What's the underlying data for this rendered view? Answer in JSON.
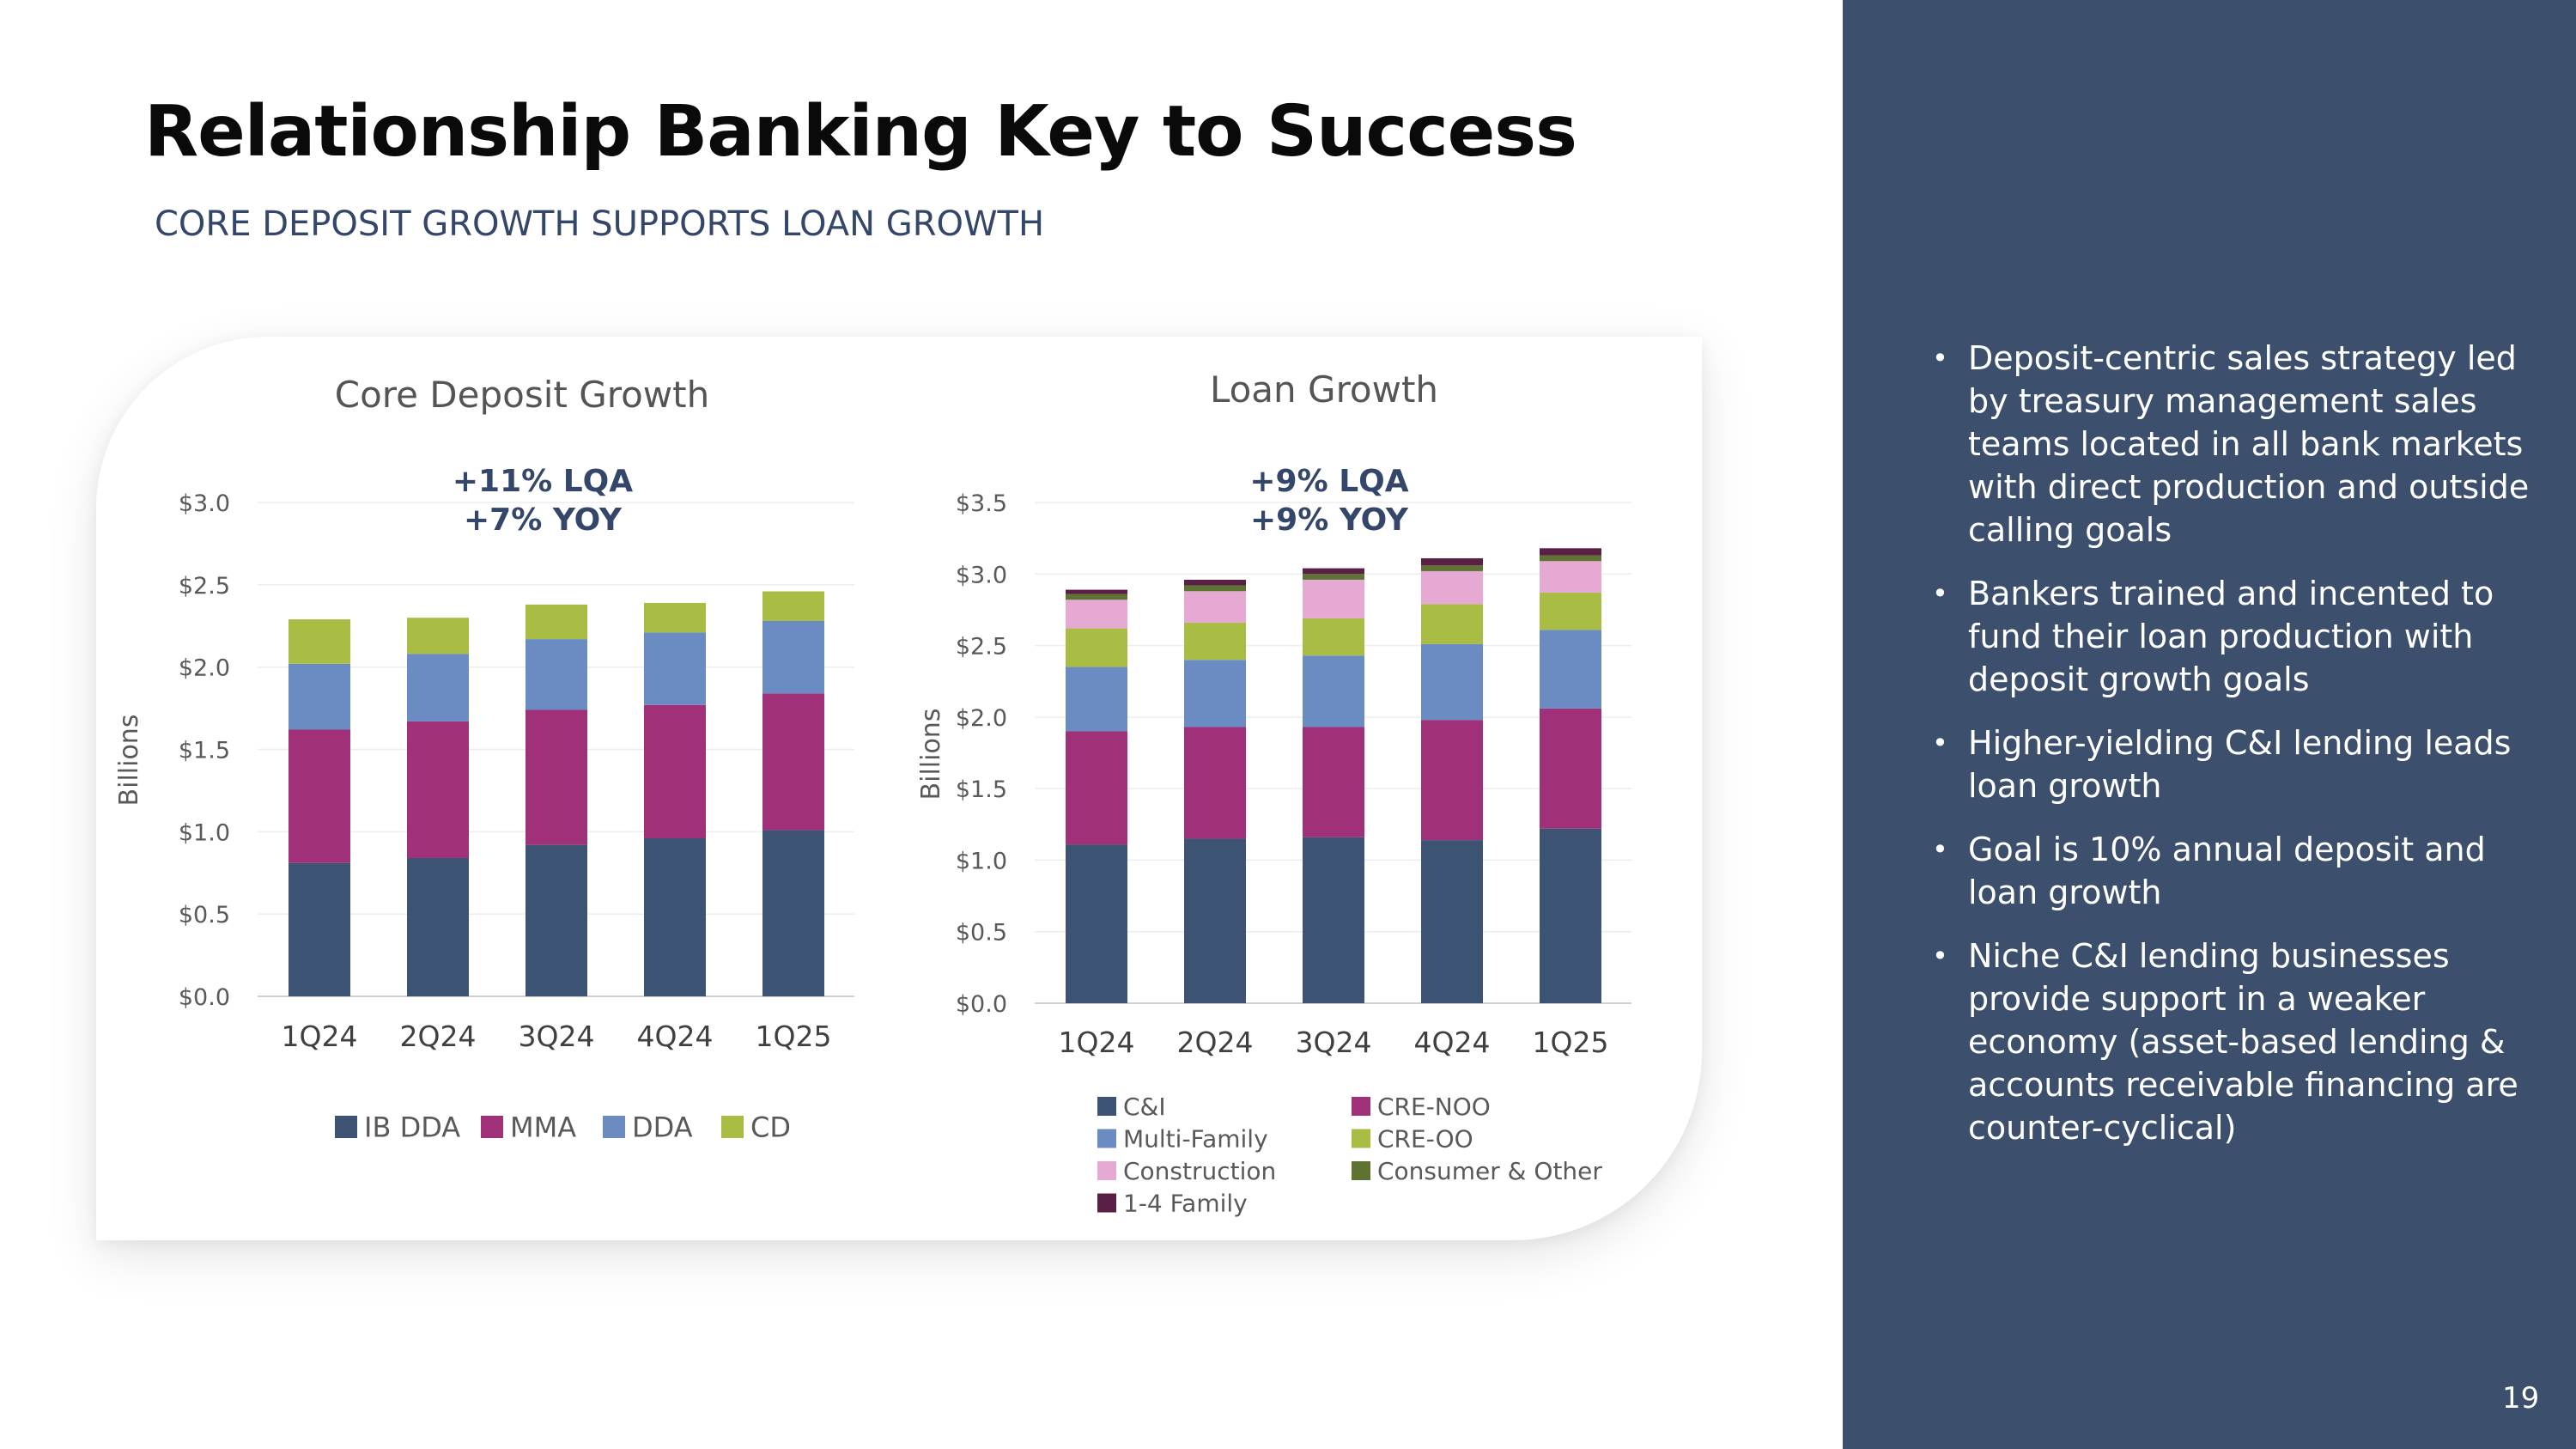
{
  "page": {
    "title": "Relationship Banking Key to Success",
    "subtitle": "CORE DEPOSIT GROWTH SUPPORTS LOAN GROWTH",
    "page_number": "19",
    "colors": {
      "sidebar": "#3c4f6d",
      "title": "#0a0a0a",
      "subtitle": "#34476a"
    }
  },
  "sidebar": {
    "bullets": [
      "Deposit-centric sales strategy led by treasury management sales teams located in all bank markets with direct production and outside calling goals",
      "Bankers trained and incented to fund their loan production with deposit growth goals",
      "Higher-yielding C&I lending leads loan growth",
      "Goal is 10% annual deposit and loan growth",
      "Niche C&I lending businesses provide support in a weaker economy (asset-based lending & accounts receivable financing are counter-cyclical)"
    ]
  },
  "chart_data": [
    {
      "type": "bar",
      "stacked": true,
      "title": "Core Deposit Growth",
      "annotation": [
        "+11% LQA",
        "+7%  YOY"
      ],
      "ylabel": "Billions",
      "xlabel": "",
      "ylim": [
        0,
        3.0
      ],
      "yticks": [
        "$0.0",
        "$0.5",
        "$1.0",
        "$1.5",
        "$2.0",
        "$2.5",
        "$3.0"
      ],
      "categories": [
        "1Q24",
        "2Q24",
        "3Q24",
        "4Q24",
        "1Q25"
      ],
      "legend_position": "bottom",
      "grid": true,
      "series": [
        {
          "name": "IB DDA",
          "color": "#3c5374",
          "values": [
            0.81,
            0.84,
            0.92,
            0.96,
            1.01
          ]
        },
        {
          "name": "MMA",
          "color": "#a03078",
          "values": [
            0.81,
            0.83,
            0.82,
            0.81,
            0.83
          ]
        },
        {
          "name": "DDA",
          "color": "#6b8cc2",
          "values": [
            0.4,
            0.41,
            0.43,
            0.44,
            0.44
          ]
        },
        {
          "name": "CD",
          "color": "#a9bd45",
          "values": [
            0.27,
            0.22,
            0.21,
            0.18,
            0.18
          ]
        }
      ]
    },
    {
      "type": "bar",
      "stacked": true,
      "title": "Loan Growth",
      "annotation": [
        "+9% LQA",
        "+9% YOY"
      ],
      "ylabel": "Billions",
      "xlabel": "",
      "ylim": [
        0,
        3.5
      ],
      "yticks": [
        "$0.0",
        "$0.5",
        "$1.0",
        "$1.5",
        "$2.0",
        "$2.5",
        "$3.0",
        "$3.5"
      ],
      "categories": [
        "1Q24",
        "2Q24",
        "3Q24",
        "4Q24",
        "1Q25"
      ],
      "legend_position": "bottom",
      "grid": true,
      "series": [
        {
          "name": "C&I",
          "color": "#3c5374",
          "values": [
            1.11,
            1.15,
            1.16,
            1.14,
            1.22
          ]
        },
        {
          "name": "CRE-NOO",
          "color": "#a03078",
          "values": [
            0.79,
            0.78,
            0.77,
            0.84,
            0.84
          ]
        },
        {
          "name": "Multi-Family",
          "color": "#6b8cc2",
          "values": [
            0.45,
            0.47,
            0.5,
            0.53,
            0.55
          ]
        },
        {
          "name": "CRE-OO",
          "color": "#a9bd45",
          "values": [
            0.27,
            0.26,
            0.26,
            0.28,
            0.26
          ]
        },
        {
          "name": "Construction",
          "color": "#e6a9d3",
          "values": [
            0.2,
            0.22,
            0.27,
            0.23,
            0.22
          ]
        },
        {
          "name": "Consumer & Other",
          "color": "#5e7232",
          "values": [
            0.04,
            0.04,
            0.04,
            0.04,
            0.04
          ]
        },
        {
          "name": "1-4 Family",
          "color": "#5a1f44",
          "values": [
            0.03,
            0.04,
            0.04,
            0.05,
            0.05
          ]
        }
      ]
    }
  ]
}
